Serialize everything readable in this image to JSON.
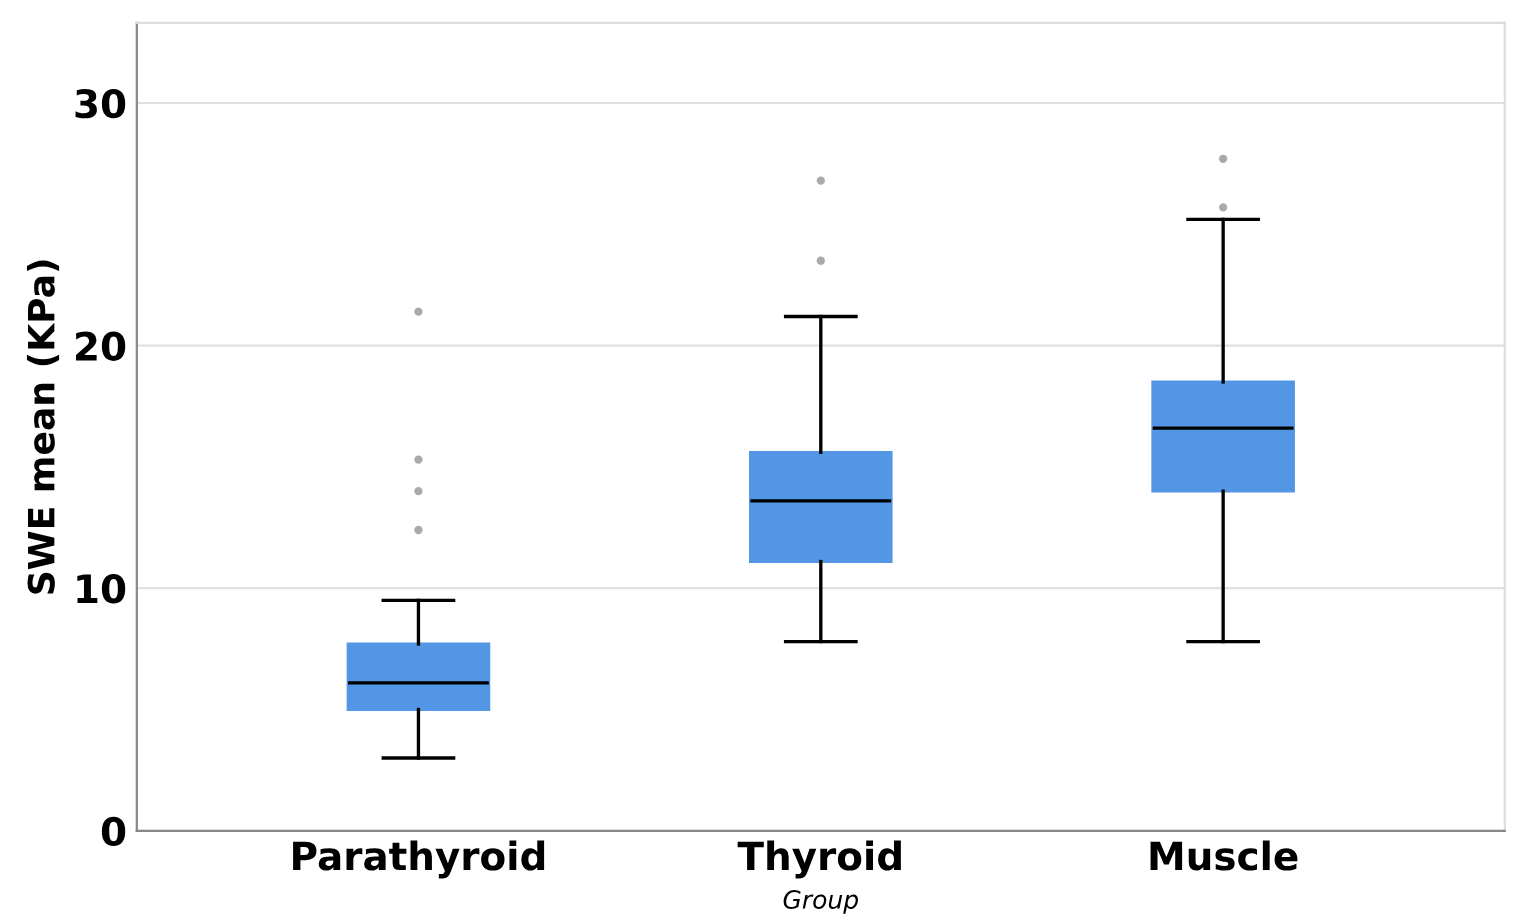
{
  "chart_data": {
    "type": "box",
    "xlabel": "Group",
    "ylabel": "SWE mean (KPa)",
    "categories": [
      "Parathyroid",
      "Thyroid",
      "Muscle"
    ],
    "boxes": [
      {
        "low": 3.0,
        "q1": 5.0,
        "median": 6.1,
        "q3": 7.7,
        "high": 9.5,
        "outliers": [
          12.4,
          14.0,
          15.3,
          21.4
        ]
      },
      {
        "low": 7.8,
        "q1": 11.1,
        "median": 13.6,
        "q3": 15.6,
        "high": 21.2,
        "outliers": [
          23.5,
          26.8
        ]
      },
      {
        "low": 7.8,
        "q1": 14.0,
        "median": 16.6,
        "q3": 18.5,
        "high": 25.2,
        "outliers": [
          25.7,
          27.7
        ]
      }
    ],
    "color": "#5496e6",
    "ylim": [
      0,
      33.3
    ],
    "yticks": [
      0,
      10,
      20,
      30
    ],
    "grid": "y"
  }
}
